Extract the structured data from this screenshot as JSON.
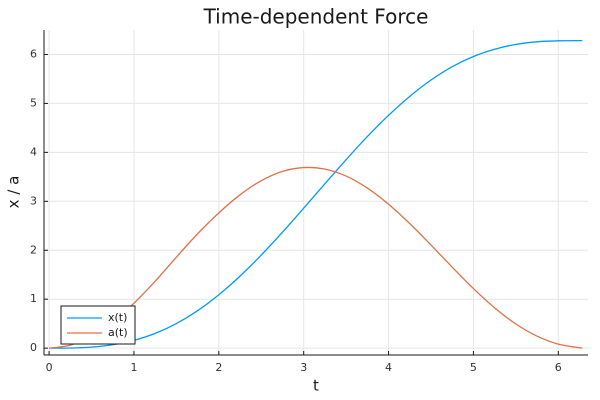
{
  "chart_data": {
    "type": "line",
    "title": "Time-dependent Force",
    "xlabel": "t",
    "ylabel": "x / a",
    "xlim": [
      -0.06,
      6.35
    ],
    "ylim": [
      -0.14,
      6.5
    ],
    "xticks": [
      0,
      1,
      2,
      3,
      4,
      5,
      6
    ],
    "yticks": [
      0,
      1,
      2,
      3,
      4,
      5,
      6
    ],
    "grid": true,
    "legend_position": "bottom-left",
    "series": [
      {
        "name": "x(t)",
        "color": "#009AFA",
        "x": [
          0,
          0.25,
          0.5,
          0.75,
          1.0,
          1.25,
          1.5,
          1.75,
          2.0,
          2.25,
          2.5,
          2.75,
          3.0,
          3.25,
          3.5,
          3.75,
          4.0,
          4.25,
          4.5,
          4.75,
          5.0,
          5.25,
          5.5,
          5.75,
          6.0,
          6.283
        ],
        "y": [
          0,
          0.003,
          0.021,
          0.069,
          0.159,
          0.301,
          0.503,
          0.766,
          1.091,
          1.472,
          1.902,
          2.369,
          2.859,
          3.358,
          3.851,
          4.322,
          4.757,
          5.145,
          5.478,
          5.751,
          5.959,
          6.107,
          6.206,
          6.259,
          6.279,
          6.283
        ]
      },
      {
        "name": "a(t)",
        "color": "#E36F47",
        "x": [
          0,
          0.25,
          0.5,
          0.75,
          1.0,
          1.25,
          1.5,
          1.75,
          2.0,
          2.25,
          2.5,
          2.75,
          3.0,
          3.25,
          3.5,
          3.75,
          4.0,
          4.25,
          4.5,
          4.75,
          5.0,
          5.25,
          5.5,
          5.75,
          6.0,
          6.283
        ],
        "y": [
          0,
          0.062,
          0.245,
          0.537,
          0.919,
          1.368,
          1.859,
          2.337,
          2.764,
          3.133,
          3.421,
          3.611,
          3.69,
          3.658,
          3.516,
          3.271,
          2.941,
          2.544,
          2.106,
          1.654,
          1.217,
          0.823,
          0.493,
          0.244,
          0.083,
          0
        ]
      }
    ]
  }
}
